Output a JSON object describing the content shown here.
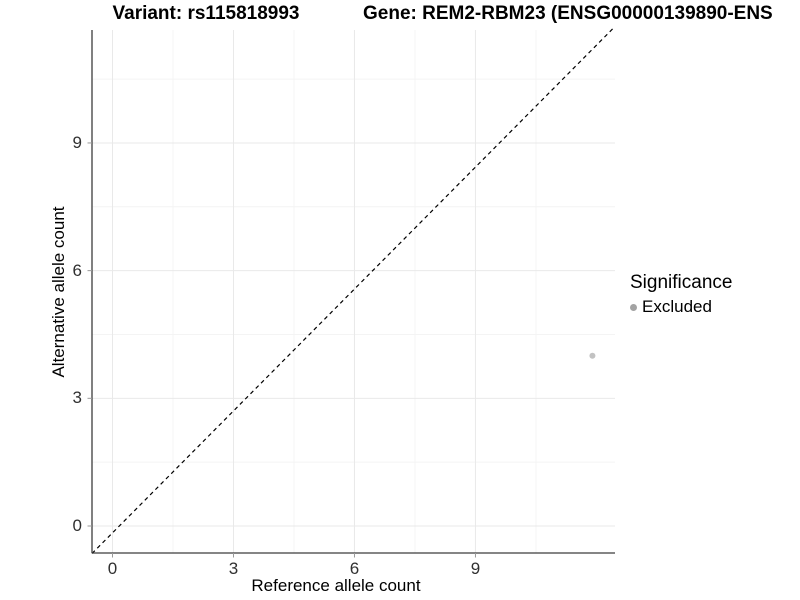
{
  "header": {
    "variant_title": "Variant: rs115818993",
    "gene_title": "Gene: REM2-RBM23 (ENSG00000139890-ENS"
  },
  "chart_data": {
    "type": "scatter",
    "titles": [
      "Variant: rs115818993",
      "Gene: REM2-RBM23 (ENSG00000139890-ENS"
    ],
    "xlabel": "Reference allele count",
    "ylabel": "Alternative allele count",
    "x_ticks": [
      0,
      3,
      6,
      9
    ],
    "y_ticks": [
      0,
      3,
      6,
      9
    ],
    "x_minor_ticks": [
      1.5,
      4.5,
      7.5,
      10.5
    ],
    "y_minor_ticks": [
      1.5,
      4.5,
      7.5,
      10.5
    ],
    "xlim": [
      -0.5,
      12.5
    ],
    "ylim": [
      -0.6,
      11.7
    ],
    "grid": true,
    "reference_line": {
      "type": "identity",
      "equation": "y = x",
      "style": "dashed",
      "color": "#000000"
    },
    "series": [
      {
        "name": "Excluded",
        "color": "#c2c2c2",
        "points": [
          [
            11.9,
            4.0
          ]
        ]
      }
    ],
    "legend": {
      "title": "Significance",
      "position": "right",
      "entries": [
        {
          "label": "Excluded",
          "color": "#a3a3a3"
        }
      ]
    }
  },
  "style": {
    "background": "#ffffff",
    "grid_major": "#e9e9e9",
    "grid_minor": "#f4f4f4",
    "axis_line": "#3c3c3c",
    "tick_mark": "#999999",
    "tick_label_color": "#303030",
    "title_color": "#000000",
    "point_color": "#c2c2c2",
    "legend_dot_color": "#a3a3a3"
  }
}
